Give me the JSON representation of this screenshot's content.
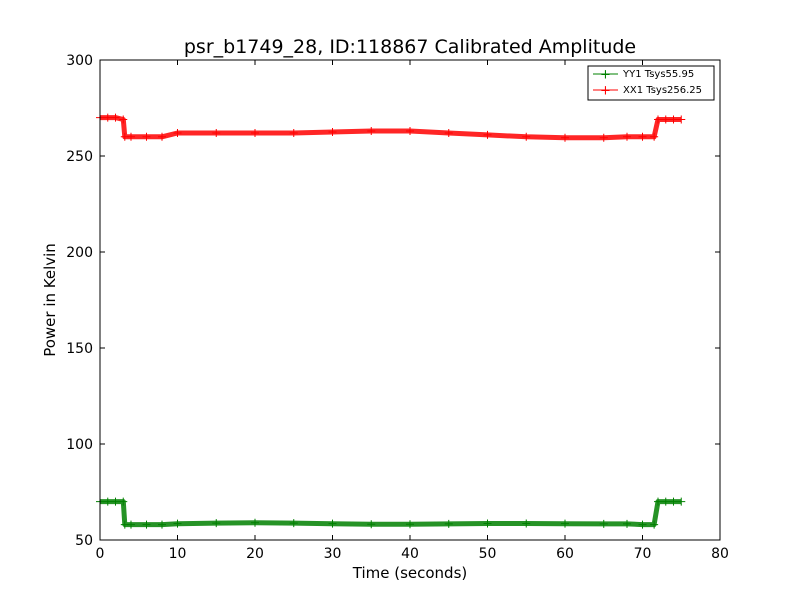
{
  "chart_data": {
    "type": "line",
    "title": "psr_b1749_28, ID:118867 Calibrated Amplitude",
    "xlabel": "Time (seconds)",
    "ylabel": "Power in Kelvin",
    "xlim": [
      0,
      80
    ],
    "ylim": [
      50,
      300
    ],
    "xticks": [
      0,
      10,
      20,
      30,
      40,
      50,
      60,
      70,
      80
    ],
    "yticks": [
      50,
      100,
      150,
      200,
      250,
      300
    ],
    "grid": false,
    "legend_position": "top-right",
    "series": [
      {
        "name": "YY1 Tsys55.95",
        "color": "#008000",
        "x": [
          0,
          1,
          2,
          3,
          3.2,
          4,
          6,
          8,
          10,
          15,
          20,
          25,
          30,
          35,
          40,
          45,
          50,
          55,
          60,
          65,
          68,
          70,
          71.5,
          72,
          73,
          74,
          75
        ],
        "y": [
          70,
          70,
          70,
          70,
          58,
          58,
          58,
          58,
          58.5,
          58.8,
          59,
          58.8,
          58.5,
          58.2,
          58.2,
          58.4,
          58.6,
          58.6,
          58.5,
          58.4,
          58.4,
          58,
          58,
          70,
          70,
          70,
          70
        ]
      },
      {
        "name": "XX1 Tsys256.25",
        "color": "#ff0000",
        "x": [
          0,
          1,
          2,
          3,
          3.2,
          4,
          6,
          8,
          10,
          15,
          20,
          25,
          30,
          35,
          40,
          45,
          50,
          55,
          60,
          65,
          68,
          70,
          71.5,
          72,
          73,
          74,
          75
        ],
        "y": [
          270,
          270,
          270,
          269,
          260,
          260,
          260,
          260,
          262,
          262,
          262,
          262,
          262.5,
          263,
          263,
          262,
          261,
          260,
          259.5,
          259.5,
          260,
          260,
          260,
          269,
          269,
          269,
          269
        ]
      }
    ]
  }
}
